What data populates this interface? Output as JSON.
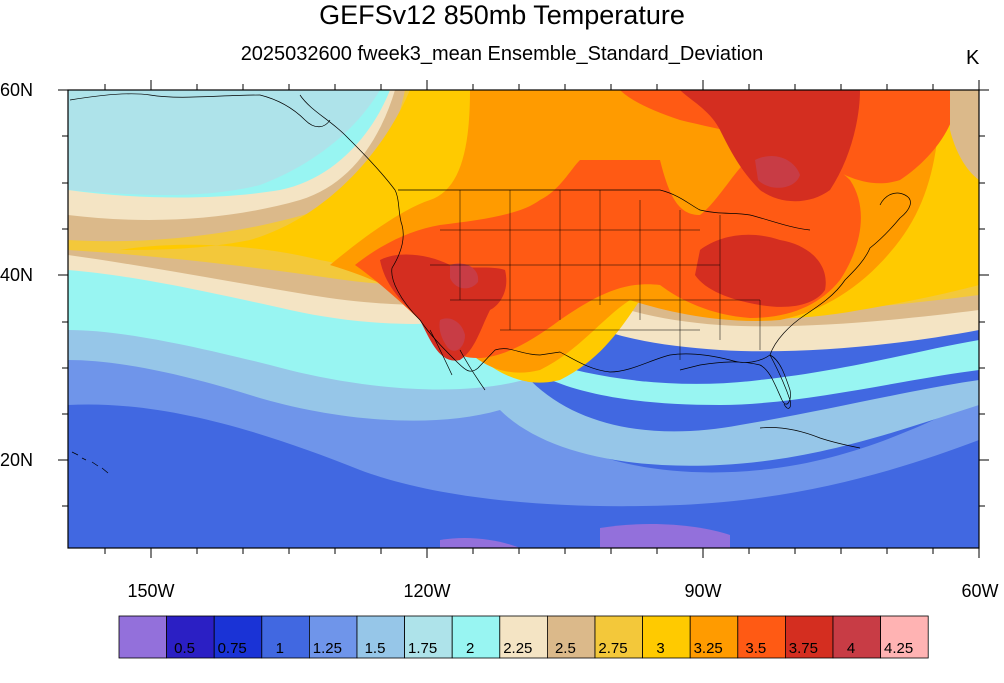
{
  "map": {
    "title": "GEFSv12 850mb Temperature",
    "subtitle": "2025032600 fweek3_mean Ensemble_Standard_Deviation",
    "units": "K",
    "lat_ticks": [
      "60N",
      "40N",
      "20N"
    ],
    "lon_ticks": [
      "150W",
      "120W",
      "90W",
      "60W"
    ],
    "extent": {
      "lon": [
        -159,
        -60
      ],
      "lat": [
        11,
        60
      ]
    }
  },
  "colorbar": {
    "levels": [
      "0.5",
      "0.75",
      "1",
      "1.25",
      "1.5",
      "1.75",
      "2",
      "2.25",
      "2.5",
      "2.75",
      "3",
      "3.25",
      "3.5",
      "3.75",
      "4",
      "4.25"
    ],
    "colors": [
      "#9370db",
      "#2b1fc4",
      "#1a33d6",
      "#4168e1",
      "#6f95ea",
      "#96c6e8",
      "#aee3ea",
      "#98f5f2",
      "#f4e4c4",
      "#dbb98a",
      "#f3c83a",
      "#ffca00",
      "#ff9b00",
      "#ff5a14",
      "#d42e20",
      "#c83c45",
      "#ffb3b3"
    ]
  }
}
